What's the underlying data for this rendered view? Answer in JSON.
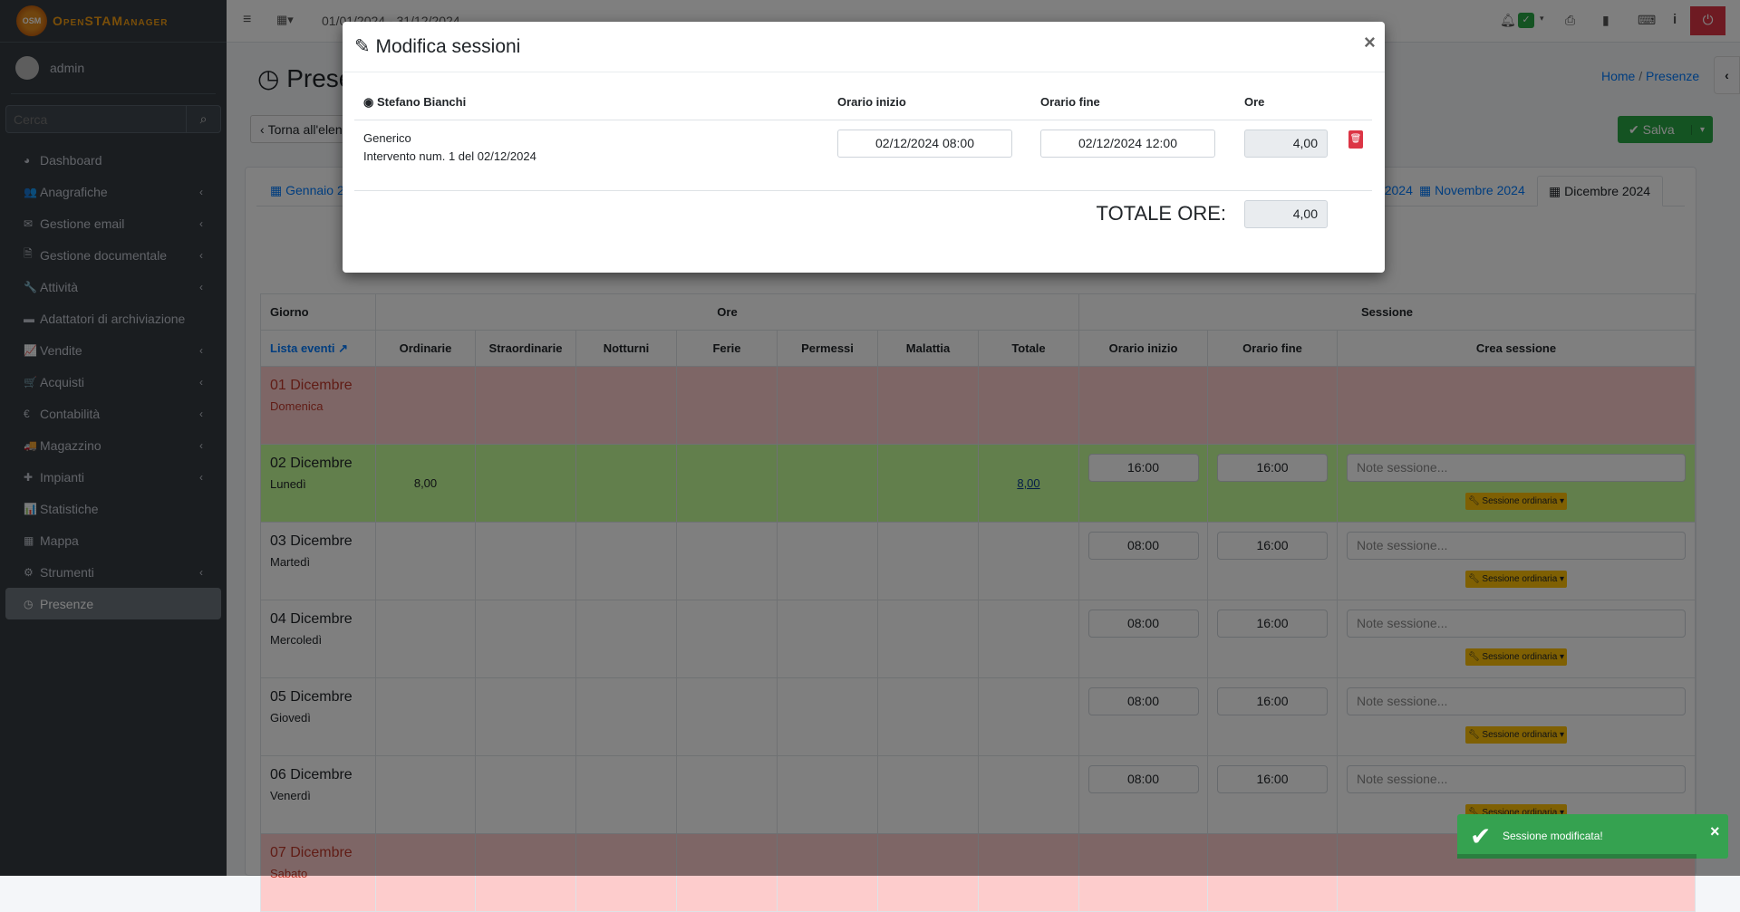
{
  "app": {
    "brand": "OpenSTAManager",
    "logo_text": "OSM",
    "user": "admin",
    "search_placeholder": "Cerca"
  },
  "sidebar": {
    "items": [
      {
        "label": "Dashboard",
        "icon": "dashboard-icon",
        "glyph": "◕",
        "chev": false
      },
      {
        "label": "Anagrafiche",
        "icon": "users-icon",
        "glyph": "👥",
        "chev": true
      },
      {
        "label": "Gestione email",
        "icon": "envelope-icon",
        "glyph": "✉",
        "chev": true
      },
      {
        "label": "Gestione documentale",
        "icon": "file-icon",
        "glyph": "🗎",
        "chev": true
      },
      {
        "label": "Attività",
        "icon": "wrench-icon",
        "glyph": "🔧",
        "chev": true
      },
      {
        "label": "Adattatori di archiviazione",
        "icon": "folder-icon",
        "glyph": "▬",
        "chev": false
      },
      {
        "label": "Vendite",
        "icon": "line-chart-icon",
        "glyph": "📈",
        "chev": true
      },
      {
        "label": "Acquisti",
        "icon": "cart-icon",
        "glyph": "🛒",
        "chev": true
      },
      {
        "label": "Contabilità",
        "icon": "euro-icon",
        "glyph": "€",
        "chev": true
      },
      {
        "label": "Magazzino",
        "icon": "truck-icon",
        "glyph": "🚚",
        "chev": true
      },
      {
        "label": "Impianti",
        "icon": "puzzle-icon",
        "glyph": "✚",
        "chev": true
      },
      {
        "label": "Statistiche",
        "icon": "bar-chart-icon",
        "glyph": "📊",
        "chev": false
      },
      {
        "label": "Mappa",
        "icon": "map-icon",
        "glyph": "▦",
        "chev": false
      },
      {
        "label": "Strumenti",
        "icon": "cog-icon",
        "glyph": "⚙",
        "chev": true
      },
      {
        "label": "Presenze",
        "icon": "clock-icon",
        "glyph": "◷",
        "chev": false,
        "active": true
      }
    ]
  },
  "topbar": {
    "date_range": "01/01/2024 - 31/12/2024"
  },
  "page": {
    "title": "Presenze",
    "back_label": "Torna all'elenco",
    "breadcrumb": [
      "Home",
      "Presenze"
    ],
    "save_label": "Salva",
    "tabs": [
      "Gennaio 2024",
      "Ottobre 2024",
      "Novembre 2024",
      "Dicembre 2024"
    ],
    "active_tab": "Dicembre 2024"
  },
  "table": {
    "group_headers": [
      "Giorno",
      "Ore",
      "Sessione"
    ],
    "events_link": "Lista eventi",
    "columns": [
      "Ordinarie",
      "Straordinarie",
      "Notturni",
      "Ferie",
      "Permessi",
      "Malattia",
      "Totale",
      "Orario inizio",
      "Orario fine",
      "Crea sessione"
    ],
    "note_placeholder": "Note sessione...",
    "session_label": "Sessione ordinaria",
    "rows": [
      {
        "day": "01 Dicembre",
        "weekday": "Domenica",
        "status": "holiday"
      },
      {
        "day": "02 Dicembre",
        "weekday": "Lunedì",
        "status": "worked",
        "ordinarie": "8,00",
        "totale": "8,00",
        "start": "16:00",
        "end": "16:00"
      },
      {
        "day": "03 Dicembre",
        "weekday": "Martedì",
        "status": "normal",
        "start": "08:00",
        "end": "16:00"
      },
      {
        "day": "04 Dicembre",
        "weekday": "Mercoledì",
        "status": "normal",
        "start": "08:00",
        "end": "16:00"
      },
      {
        "day": "05 Dicembre",
        "weekday": "Giovedì",
        "status": "normal",
        "start": "08:00",
        "end": "16:00"
      },
      {
        "day": "06 Dicembre",
        "weekday": "Venerdì",
        "status": "normal",
        "start": "08:00",
        "end": "16:00"
      },
      {
        "day": "07 Dicembre",
        "weekday": "Sabato",
        "status": "holiday"
      }
    ]
  },
  "modal": {
    "title": "Modifica sessioni",
    "close": "×",
    "employee": "Stefano Bianchi",
    "col_start": "Orario inizio",
    "col_end": "Orario fine",
    "col_hours": "Ore",
    "session": {
      "type": "Generico",
      "description": "Intervento num. 1 del 02/12/2024",
      "start": "02/12/2024 08:00",
      "end": "02/12/2024 12:00",
      "hours": "4,00"
    },
    "total_label": "TOTALE ORE:",
    "total": "4,00"
  },
  "toast": {
    "message": "Sessione modificata!",
    "close": "×"
  },
  "colors": {
    "success": "#28a745",
    "danger": "#dc3545",
    "warning": "#ffc107",
    "link": "#007bff"
  }
}
